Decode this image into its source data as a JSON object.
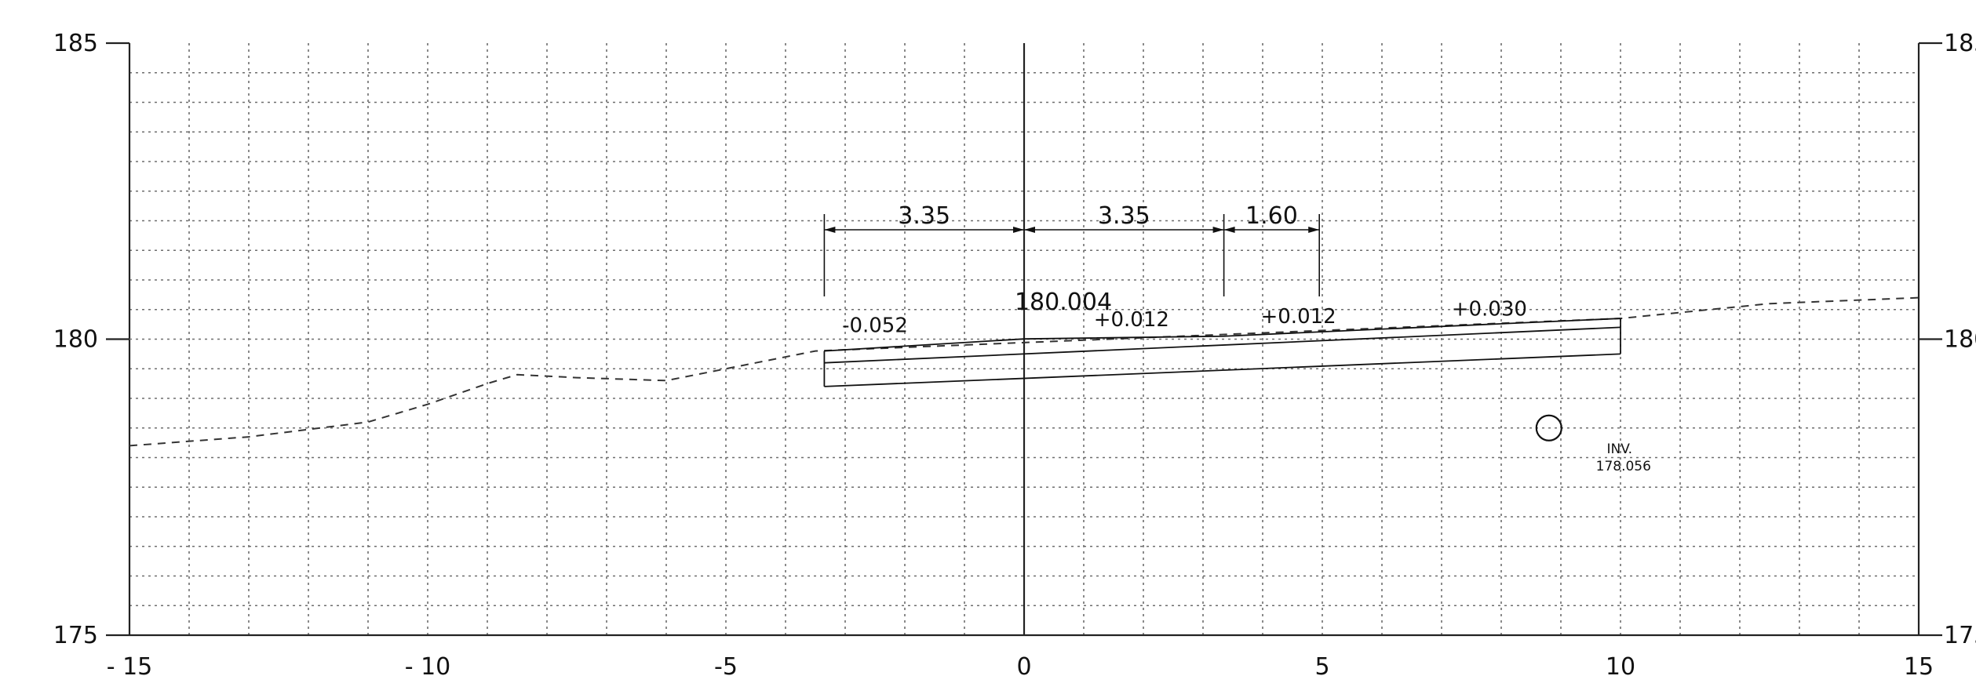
{
  "axes": {
    "x_ticks": [
      -15,
      -10,
      -5,
      0,
      5,
      10,
      15
    ],
    "x_tick_labels": [
      "- 15",
      "- 10",
      "-5",
      "0",
      "5",
      "10",
      "15"
    ],
    "y_ticks": [
      175,
      180,
      185
    ],
    "y_tick_labels": [
      "175",
      "180",
      "185"
    ],
    "xlim": [
      -15,
      15
    ],
    "ylim": [
      175,
      185
    ],
    "grid": true
  },
  "ground_profile": [
    [
      -15,
      178.2
    ],
    [
      -13,
      178.35
    ],
    [
      -11,
      178.6
    ],
    [
      -10,
      178.9
    ],
    [
      -9,
      179.25
    ],
    [
      -8.5,
      179.4
    ],
    [
      -7.5,
      179.35
    ],
    [
      -6,
      179.3
    ],
    [
      -4.5,
      179.6
    ],
    [
      -3.5,
      179.8
    ],
    [
      10,
      180.35
    ],
    [
      12.5,
      180.6
    ],
    [
      15,
      180.7
    ]
  ],
  "pavement": {
    "top": [
      [
        -3.35,
        179.8
      ],
      [
        0,
        180.004
      ],
      [
        3.35,
        180.05
      ],
      [
        10,
        180.35
      ]
    ],
    "bottom": [
      [
        -3.35,
        179.2
      ],
      [
        10,
        179.75
      ]
    ],
    "inner": [
      [
        -3.35,
        179.6
      ],
      [
        10,
        180.2
      ]
    ]
  },
  "dimensions": [
    {
      "from": -3.35,
      "to": 0,
      "label": "3.35"
    },
    {
      "from": 0,
      "to": 3.35,
      "label": "3.35"
    },
    {
      "from": 3.35,
      "to": 4.95,
      "label": "1.60"
    }
  ],
  "slope_labels": [
    {
      "x": -2.5,
      "y": 180.12,
      "text": "-0.052"
    },
    {
      "x": 1.8,
      "y": 180.22,
      "text": "+0.012"
    },
    {
      "x": 4.6,
      "y": 180.27,
      "text": "+0.012"
    },
    {
      "x": 7.8,
      "y": 180.4,
      "text": "+0.030"
    }
  ],
  "center_elevation": {
    "x": 0,
    "y": 180.5,
    "text": "180.004"
  },
  "pipe": {
    "x": 8.8,
    "y": 178.5,
    "label_small": "INV.",
    "label": "178.056"
  }
}
